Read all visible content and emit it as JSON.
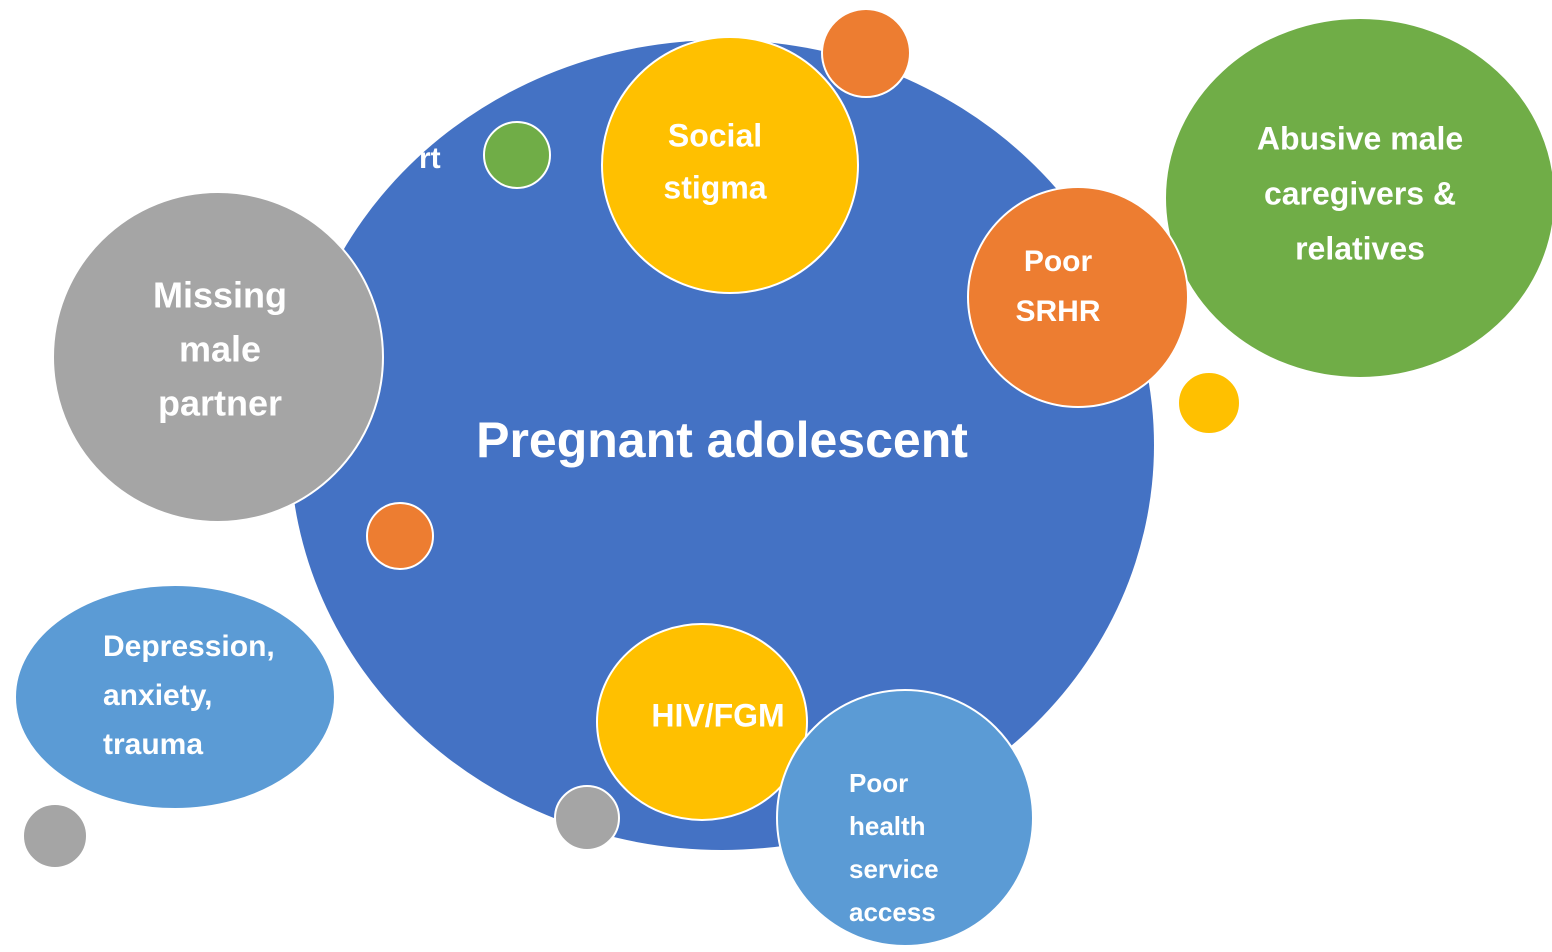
{
  "center": {
    "label": "Pregnant adolescent"
  },
  "nodes": [
    {
      "lines": [
        "Social",
        "stigma"
      ]
    },
    {
      "lines": [
        "Poor",
        "SRHR"
      ]
    },
    {
      "lines": [
        "Abusive male",
        "caregivers &",
        "relatives"
      ]
    },
    {
      "lines": [
        "Missing",
        "male",
        "partner"
      ]
    },
    {
      "lines": [
        "Depression,",
        "anxiety,",
        "trauma"
      ]
    },
    {
      "lines": [
        "HIV/FGM"
      ]
    },
    {
      "lines": [
        "Poor",
        "health",
        "service",
        "access"
      ]
    },
    {
      "lines": [
        "rt"
      ]
    }
  ]
}
